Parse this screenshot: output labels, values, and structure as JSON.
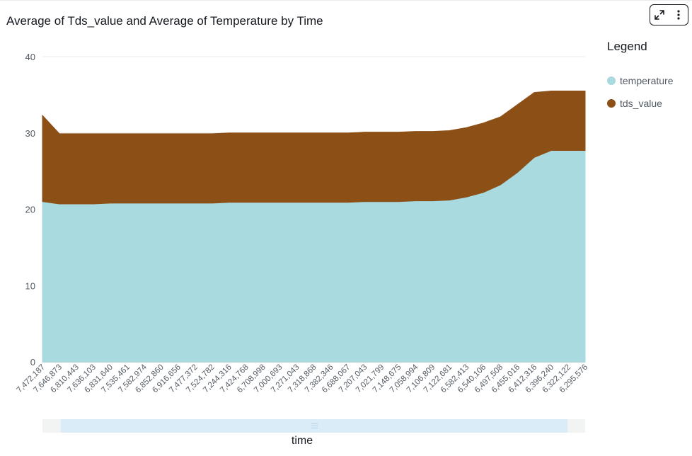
{
  "visual": {
    "title": "Average of Tds_value and Average of Temperature by Time",
    "icons": {
      "expand": "expand-icon",
      "more": "more-vertical-icon"
    }
  },
  "legend": {
    "title": "Legend",
    "items": [
      {
        "label": "temperature",
        "color": "#a8dae0"
      },
      {
        "label": "tds_value",
        "color": "#8c5017"
      }
    ]
  },
  "chart_data": {
    "type": "area",
    "stacked": true,
    "title": "Average of Tds_value and Average of Temperature by Time",
    "xlabel": "time",
    "ylabel": "",
    "ylim": [
      0,
      40
    ],
    "yticks": [
      0,
      10,
      20,
      30,
      40
    ],
    "grid": true,
    "legend_position": "right",
    "x": [
      "7,472,187",
      "7,646,873",
      "6,810,443",
      "7,636,103",
      "6,831,640",
      "7,535,461",
      "7,582,974",
      "6,852,860",
      "6,916,656",
      "7,477,372",
      "7,524,782",
      "7,244,316",
      "7,424,768",
      "6,708,998",
      "7,000,693",
      "7,271,043",
      "7,318,868",
      "7,382,346",
      "6,688,067",
      "7,207,043",
      "7,021,799",
      "7,148,675",
      "7,058,994",
      "7,106,809",
      "7,122,681",
      "6,582,413",
      "6,540,106",
      "6,497,508",
      "6,455,016",
      "6,412,316",
      "6,396,240",
      "6,322,122",
      "6,295,576"
    ],
    "series": [
      {
        "name": "temperature",
        "color": "#a8dae0",
        "values": [
          21.0,
          20.7,
          20.7,
          20.7,
          20.8,
          20.8,
          20.8,
          20.8,
          20.8,
          20.8,
          20.8,
          20.9,
          20.9,
          20.9,
          20.9,
          20.9,
          20.9,
          20.9,
          20.9,
          21.0,
          21.0,
          21.0,
          21.1,
          21.1,
          21.2,
          21.6,
          22.2,
          23.2,
          24.8,
          26.8,
          27.7,
          27.7,
          27.7
        ]
      },
      {
        "name": "tds_value",
        "color": "#8c5017",
        "values": [
          11.3,
          9.2,
          9.2,
          9.2,
          9.1,
          9.1,
          9.1,
          9.1,
          9.1,
          9.1,
          9.1,
          9.1,
          9.1,
          9.1,
          9.1,
          9.1,
          9.1,
          9.1,
          9.1,
          9.1,
          9.1,
          9.1,
          9.1,
          9.1,
          9.1,
          9.1,
          9.1,
          8.9,
          8.9,
          8.5,
          7.8,
          7.8,
          7.8
        ]
      }
    ]
  }
}
